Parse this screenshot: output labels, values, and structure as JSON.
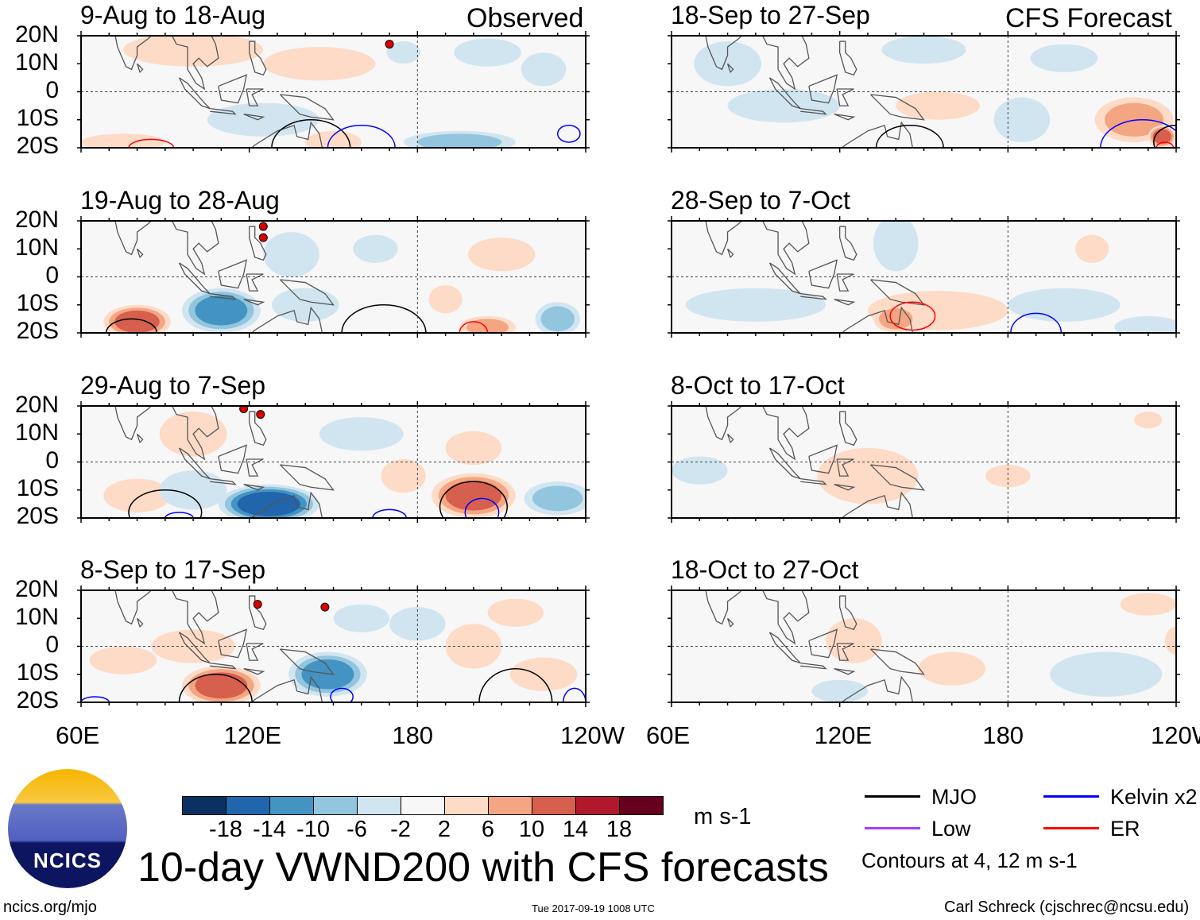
{
  "title": "10-day VWND200 with CFS forecasts",
  "observed_label": "Observed",
  "forecast_label": "CFS Forecast",
  "units": "m s-1",
  "contour_note": "Contours at 4, 12 m s-1",
  "footer": {
    "url": "ncics.org/mjo",
    "timestamp": "Tue 2017-09-19 1008 UTC",
    "credit": "Carl Schreck (cjschrec@ncsu.edu)"
  },
  "logo_text": "NCICS",
  "legend": [
    {
      "label": "MJO",
      "color": "#000000"
    },
    {
      "label": "Kelvin x2",
      "color": "#0000ff"
    },
    {
      "label": "Low",
      "color": "#a040ff"
    },
    {
      "label": "ER",
      "color": "#ff0000"
    }
  ],
  "colorbar": {
    "colors": [
      "#0b3162",
      "#2166ac",
      "#4393c3",
      "#92c5de",
      "#d1e5f0",
      "#f7f7f7",
      "#fddbc7",
      "#f4a582",
      "#d6604d",
      "#b2182b",
      "#67001f"
    ],
    "ticks": [
      "-18",
      "-14",
      "-10",
      "-6",
      "-2",
      "2",
      "6",
      "10",
      "14",
      "18"
    ]
  },
  "chart_data": {
    "type": "heatmap",
    "lon_range": [
      60,
      240
    ],
    "lat_range": [
      -20,
      20
    ],
    "ylabels": [
      "20N",
      "10N",
      "0",
      "10S",
      "20S"
    ],
    "xlabels": [
      "60E",
      "120E",
      "180",
      "120W"
    ],
    "panels": [
      {
        "title": "9-Aug to 18-Aug",
        "blobs": [
          [
            100,
            15,
            25,
            6,
            4
          ],
          [
            145,
            10,
            20,
            6,
            3
          ],
          [
            175,
            14,
            6,
            4,
            -3
          ],
          [
            205,
            14,
            12,
            5,
            -4
          ],
          [
            225,
            8,
            8,
            6,
            -3
          ],
          [
            125,
            -10,
            20,
            6,
            -5
          ],
          [
            195,
            -18,
            20,
            4,
            -8
          ],
          [
            75,
            -18,
            15,
            3,
            4
          ],
          [
            150,
            -18,
            10,
            4,
            5
          ]
        ],
        "contours": [
          [
            142,
            -20,
            14,
            10,
            "#000"
          ],
          [
            160,
            -20,
            12,
            8,
            "#00f"
          ],
          [
            234,
            -15,
            4,
            3,
            "#00f"
          ],
          [
            85,
            -20,
            8,
            3,
            "#f00"
          ]
        ],
        "storms": [
          [
            170,
            17
          ]
        ]
      },
      {
        "title": "19-Aug to 28-Aug",
        "blobs": [
          [
            80,
            -16,
            12,
            6,
            12
          ],
          [
            110,
            -12,
            14,
            8,
            -10
          ],
          [
            140,
            -10,
            12,
            6,
            -5
          ],
          [
            135,
            8,
            10,
            8,
            -4
          ],
          [
            210,
            8,
            12,
            6,
            4
          ],
          [
            205,
            -18,
            10,
            4,
            8
          ],
          [
            230,
            -15,
            8,
            6,
            -6
          ],
          [
            190,
            -8,
            6,
            5,
            4
          ],
          [
            165,
            10,
            8,
            5,
            -3
          ]
        ],
        "contours": [
          [
            78,
            -20,
            9,
            5,
            "#000"
          ],
          [
            168,
            -20,
            15,
            10,
            "#000"
          ],
          [
            200,
            -20,
            5,
            4,
            "#f00"
          ]
        ],
        "storms": [
          [
            125,
            18
          ],
          [
            125,
            14
          ]
        ]
      },
      {
        "title": "29-Aug to 7-Sep",
        "blobs": [
          [
            80,
            -12,
            12,
            6,
            4
          ],
          [
            100,
            -10,
            12,
            7,
            -4
          ],
          [
            127,
            -15,
            18,
            7,
            -14
          ],
          [
            200,
            -12,
            15,
            8,
            13
          ],
          [
            230,
            -13,
            12,
            6,
            -8
          ],
          [
            100,
            10,
            12,
            8,
            4
          ],
          [
            160,
            10,
            15,
            6,
            -3
          ],
          [
            175,
            -5,
            8,
            6,
            3
          ],
          [
            200,
            5,
            10,
            6,
            3
          ]
        ],
        "contours": [
          [
            90,
            -18,
            13,
            8,
            "#000"
          ],
          [
            200,
            -16,
            12,
            9,
            "#000"
          ],
          [
            203,
            -18,
            6,
            5,
            "#00f"
          ],
          [
            170,
            -20,
            6,
            3,
            "#00f"
          ],
          [
            95,
            -20,
            5,
            2,
            "#00f"
          ]
        ],
        "storms": [
          [
            118,
            19
          ],
          [
            124,
            17
          ]
        ]
      },
      {
        "title": "8-Sep to 17-Sep",
        "blobs": [
          [
            110,
            -14,
            14,
            7,
            12
          ],
          [
            148,
            -10,
            14,
            8,
            -12
          ],
          [
            100,
            0,
            15,
            6,
            4
          ],
          [
            180,
            8,
            10,
            6,
            -3
          ],
          [
            200,
            0,
            10,
            8,
            3
          ],
          [
            225,
            -10,
            12,
            6,
            3
          ],
          [
            160,
            10,
            10,
            5,
            -3
          ],
          [
            75,
            -5,
            12,
            5,
            3
          ],
          [
            215,
            12,
            10,
            5,
            3
          ]
        ],
        "contours": [
          [
            108,
            -20,
            13,
            10,
            "#000"
          ],
          [
            215,
            -20,
            13,
            12,
            "#000"
          ],
          [
            65,
            -20,
            5,
            2,
            "#00f"
          ],
          [
            236,
            -20,
            4,
            5,
            "#00f"
          ],
          [
            153,
            -18,
            4,
            3,
            "#00f"
          ]
        ],
        "storms": [
          [
            123,
            15
          ],
          [
            147,
            14
          ]
        ]
      },
      {
        "title": "18-Sep to 27-Sep",
        "blobs": [
          [
            80,
            10,
            12,
            8,
            -3
          ],
          [
            150,
            15,
            15,
            5,
            -3
          ],
          [
            100,
            -5,
            20,
            6,
            -4
          ],
          [
            155,
            -5,
            15,
            5,
            3
          ],
          [
            200,
            12,
            12,
            5,
            -3
          ],
          [
            225,
            -10,
            14,
            8,
            8
          ],
          [
            235,
            -16,
            5,
            4,
            12
          ],
          [
            185,
            -10,
            10,
            8,
            -3
          ]
        ],
        "contours": [
          [
            145,
            -20,
            12,
            8,
            "#000"
          ],
          [
            228,
            -20,
            15,
            10,
            "#00f"
          ],
          [
            240,
            -18,
            8,
            6,
            "#000"
          ],
          [
            236,
            -20,
            3,
            2,
            "#f00"
          ]
        ],
        "storms": []
      },
      {
        "title": "28-Sep to 7-Oct",
        "blobs": [
          [
            140,
            12,
            8,
            10,
            -5
          ],
          [
            90,
            -10,
            25,
            6,
            -3
          ],
          [
            155,
            -12,
            25,
            7,
            4
          ],
          [
            140,
            -15,
            8,
            5,
            8
          ],
          [
            200,
            -10,
            20,
            6,
            -3
          ],
          [
            230,
            -18,
            12,
            4,
            -4
          ],
          [
            210,
            10,
            6,
            5,
            3
          ]
        ],
        "contours": [
          [
            146,
            -14,
            8,
            5,
            "#f00"
          ],
          [
            190,
            -20,
            9,
            7,
            "#00f"
          ]
        ],
        "storms": []
      },
      {
        "title": "8-Oct to 17-Oct",
        "blobs": [
          [
            130,
            -5,
            18,
            10,
            4
          ],
          [
            70,
            -3,
            10,
            5,
            -3
          ],
          [
            180,
            -5,
            8,
            4,
            3
          ],
          [
            230,
            15,
            5,
            3,
            3
          ]
        ],
        "contours": [],
        "storms": []
      },
      {
        "title": "18-Oct to 27-Oct",
        "blobs": [
          [
            125,
            2,
            10,
            8,
            4
          ],
          [
            160,
            -8,
            12,
            6,
            3
          ],
          [
            215,
            -10,
            20,
            8,
            -3
          ],
          [
            230,
            15,
            10,
            4,
            3
          ],
          [
            120,
            -16,
            10,
            4,
            -3
          ],
          [
            240,
            2,
            4,
            5,
            3
          ]
        ],
        "contours": [],
        "storms": []
      }
    ]
  }
}
